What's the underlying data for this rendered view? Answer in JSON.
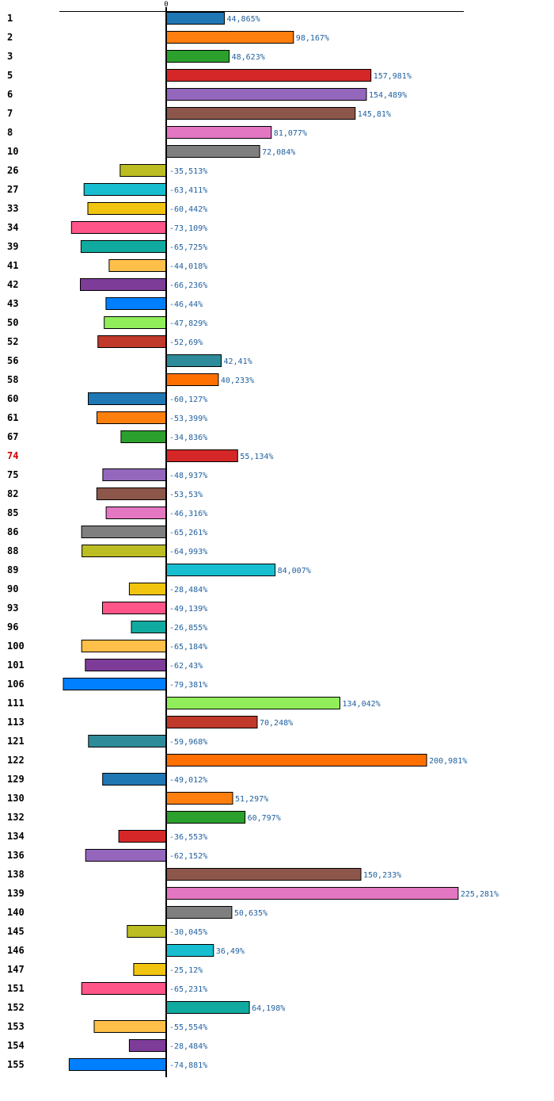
{
  "chart_data": {
    "type": "bar",
    "orientation": "horizontal",
    "title": "",
    "xlabel": "",
    "ylabel": "",
    "x_ticks": [
      "0"
    ],
    "xlim": [
      -100,
      275
    ],
    "value_suffix": "%",
    "decimal_separator": ",",
    "highlight_category": "74",
    "categories": [
      "1",
      "2",
      "3",
      "5",
      "6",
      "7",
      "8",
      "10",
      "26",
      "27",
      "33",
      "34",
      "39",
      "41",
      "42",
      "43",
      "50",
      "52",
      "56",
      "58",
      "60",
      "61",
      "67",
      "74",
      "75",
      "82",
      "85",
      "86",
      "88",
      "89",
      "90",
      "93",
      "96",
      "100",
      "101",
      "106",
      "111",
      "113",
      "121",
      "122",
      "129",
      "130",
      "132",
      "134",
      "136",
      "138",
      "139",
      "140",
      "145",
      "146",
      "147",
      "151",
      "152",
      "153",
      "154",
      "155"
    ],
    "values": [
      44.865,
      98.167,
      48.623,
      157.981,
      154.489,
      145.81,
      81.077,
      72.084,
      -35.513,
      -63.411,
      -60.442,
      -73.109,
      -65.725,
      -44.018,
      -66.236,
      -46.44,
      -47.829,
      -52.69,
      42.41,
      40.233,
      -60.127,
      -53.399,
      -34.836,
      55.134,
      -48.937,
      -53.53,
      -46.316,
      -65.261,
      -64.993,
      84.007,
      -28.484,
      -49.139,
      -26.855,
      -65.184,
      -62.43,
      -79.381,
      134.042,
      70.248,
      -59.968,
      200.981,
      -49.012,
      51.297,
      60.797,
      -36.553,
      -62.152,
      150.233,
      225.281,
      50.635,
      -30.045,
      36.49,
      -25.12,
      -65.231,
      64.198,
      -55.554,
      -28.484,
      -74.881
    ],
    "value_labels": [
      "44,865%",
      "98,167%",
      "48,623%",
      "157,981%",
      "154,489%",
      "145,81%",
      "81,077%",
      "72,084%",
      "-35,513%",
      "-63,411%",
      "-60,442%",
      "-73,109%",
      "-65,725%",
      "-44,018%",
      "-66,236%",
      "-46,44%",
      "-47,829%",
      "-52,69%",
      "42,41%",
      "40,233%",
      "-60,127%",
      "-53,399%",
      "-34,836%",
      "55,134%",
      "-48,937%",
      "-53,53%",
      "-46,316%",
      "-65,261%",
      "-64,993%",
      "84,007%",
      "-28,484%",
      "-49,139%",
      "-26,855%",
      "-65,184%",
      "-62,43%",
      "-79,381%",
      "134,042%",
      "70,248%",
      "-59,968%",
      "200,981%",
      "-49,012%",
      "51,297%",
      "60,797%",
      "-36,553%",
      "-62,152%",
      "150,233%",
      "225,281%",
      "50,635%",
      "-30,045%",
      "36,49%",
      "-25,12%",
      "-65,231%",
      "64,198%",
      "-55,554%",
      "-28,484%",
      "-74,881%"
    ],
    "palette": [
      "#1f77b4",
      "#ff7f0e",
      "#2ca02c",
      "#d62728",
      "#9467bd",
      "#8c564b",
      "#e377c2",
      "#7f7f7f",
      "#bcbd22",
      "#17becf",
      "#f1c40f",
      "#ff5588",
      "#11aaa0",
      "#ffc04a",
      "#7d3c98",
      "#0080ff",
      "#90ee5a",
      "#c0392b",
      "#2e8b9a",
      "#ff7000"
    ]
  }
}
